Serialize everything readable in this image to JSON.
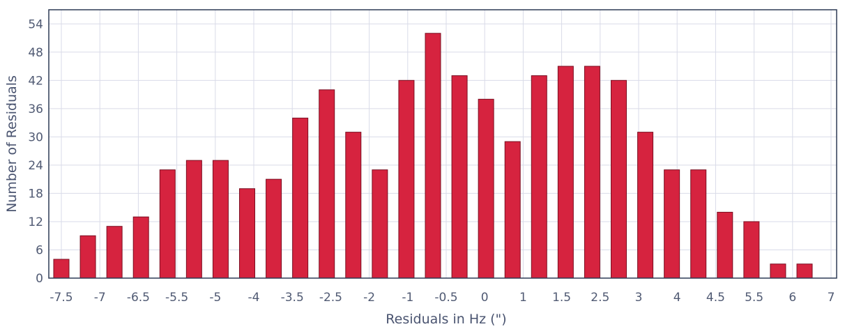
{
  "chart_data": {
    "type": "bar",
    "ylabel": "Number of Residuals",
    "xlabel": "Residuals in Hz (\")",
    "ylim": [
      0,
      57
    ],
    "yticks": [
      0,
      6,
      12,
      18,
      24,
      30,
      36,
      42,
      48,
      54
    ],
    "xticks": [
      "-7.5",
      "-7",
      "-6.5",
      "-5.5",
      "-5",
      "-4",
      "-3.5",
      "-2.5",
      "-2",
      "-1",
      "-0.5",
      "0",
      "1",
      "1.5",
      "2.5",
      "3",
      "4",
      "4.5",
      "5.5",
      "6",
      "7"
    ],
    "values": [
      4,
      9,
      11,
      13,
      23,
      25,
      25,
      19,
      21,
      34,
      40,
      31,
      23,
      42,
      52,
      43,
      38,
      29,
      43,
      45,
      45,
      42,
      31,
      23,
      23,
      14,
      12,
      3,
      3
    ],
    "grid": true,
    "colors": {
      "bar": "#d6233f",
      "bar_edge": "#7a0f22",
      "grid": "#d9dbe8",
      "frame": "#2d3a55"
    }
  }
}
